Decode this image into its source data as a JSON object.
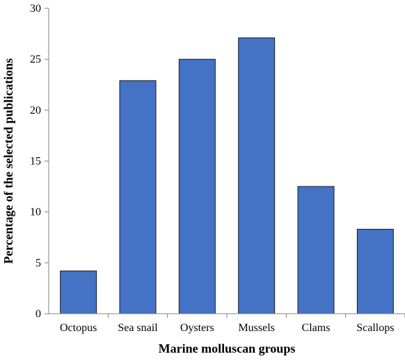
{
  "chart_data": {
    "type": "bar",
    "title": "",
    "xlabel": "Marine molluscan groups",
    "ylabel": "Percentage of the selected publications",
    "categories": [
      "Octopus",
      "Sea snail",
      "Oysters",
      "Mussels",
      "Clams",
      "Scallops"
    ],
    "values": [
      4.2,
      22.9,
      25.0,
      27.1,
      12.5,
      8.3
    ],
    "ylim": [
      0,
      30
    ],
    "yticks": [
      "0",
      "5",
      "10",
      "15",
      "20",
      "25",
      "30"
    ],
    "grid": false,
    "legend": "none",
    "bar_color": "#4472C4",
    "bar_edge_color": "#1a1a1a"
  }
}
